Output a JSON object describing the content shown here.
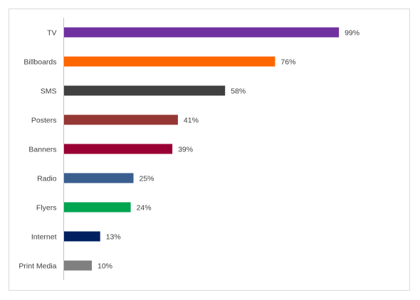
{
  "chart_data": {
    "type": "bar",
    "orientation": "horizontal",
    "categories": [
      "TV",
      "Billboards",
      "SMS",
      "Posters",
      "Banners",
      "Radio",
      "Flyers",
      "Internet",
      "Print Media"
    ],
    "values": [
      99,
      76,
      58,
      41,
      39,
      25,
      24,
      13,
      10
    ],
    "value_labels": [
      "99%",
      "76%",
      "58%",
      "41%",
      "39%",
      "25%",
      "24%",
      "13%",
      "10%"
    ],
    "colors": [
      "#7030a0",
      "#ff6600",
      "#404040",
      "#953735",
      "#990033",
      "#3a5f8f",
      "#00a550",
      "#002060",
      "#808080"
    ],
    "title": "",
    "xlabel": "",
    "ylabel": "",
    "xlim": [
      0,
      100
    ],
    "grid": false,
    "legend": "none"
  }
}
